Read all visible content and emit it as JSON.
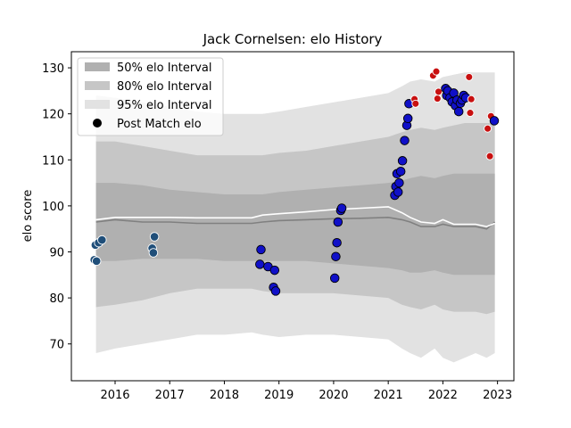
{
  "chart_data": {
    "type": "scatter",
    "title": "Jack Cornelsen: elo History",
    "xlabel": "",
    "ylabel": "elo score",
    "xlim": [
      2015.2,
      2023.3
    ],
    "ylim": [
      62,
      133.5
    ],
    "x_ticks": [
      2016,
      2017,
      2018,
      2019,
      2020,
      2021,
      2022,
      2023
    ],
    "y_ticks": [
      70,
      80,
      90,
      100,
      110,
      120,
      130
    ],
    "legend": {
      "placement": "top-left",
      "entries": [
        "50% elo Interval",
        "80% elo Interval",
        "95% elo Interval",
        "Post Match elo"
      ]
    },
    "colors": {
      "band50": "#b0b0b0",
      "band80": "#c6c6c6",
      "band95": "#e2e2e2",
      "median_line": "#808080",
      "mean_line": "#ffffff",
      "point_early": "#1f4e79",
      "point_mid": "#1010c8",
      "point_late": "#c81010"
    },
    "bands": {
      "x": [
        2015.65,
        2016.0,
        2016.5,
        2017.0,
        2017.5,
        2018.0,
        2018.5,
        2018.7,
        2019.0,
        2019.5,
        2020.0,
        2020.5,
        2021.0,
        2021.25,
        2021.4,
        2021.6,
        2021.85,
        2022.0,
        2022.2,
        2022.4,
        2022.6,
        2022.8,
        2022.95
      ],
      "p95_low": [
        68,
        69,
        70,
        71,
        72,
        72,
        72.5,
        72,
        71.5,
        72,
        72,
        71.5,
        71,
        69,
        68,
        67,
        69,
        67,
        66,
        67,
        68,
        67,
        68
      ],
      "p80_low": [
        78,
        78.5,
        79.5,
        81,
        82,
        82,
        82,
        81.5,
        81,
        81,
        81,
        80.5,
        80,
        78.5,
        78,
        77.5,
        78.5,
        77.5,
        77,
        77,
        77,
        76.5,
        77
      ],
      "p50_low": [
        88,
        88,
        88.5,
        88.5,
        88.5,
        88,
        88,
        88,
        88,
        88,
        87.5,
        87,
        86.5,
        86,
        85.5,
        85.5,
        86,
        85.5,
        85,
        85,
        85,
        85,
        85
      ],
      "p50_high": [
        105,
        105,
        104.5,
        103.5,
        103,
        102.5,
        102.5,
        102.5,
        103,
        103.5,
        104,
        104.5,
        105,
        105.5,
        106,
        106.5,
        106,
        106.5,
        107,
        107,
        107,
        107,
        107
      ],
      "p80_high": [
        114,
        114,
        113,
        112,
        111,
        111,
        111,
        111,
        111.5,
        112,
        113,
        114,
        115,
        116,
        116.5,
        117,
        116.5,
        117,
        117.5,
        118,
        118,
        118,
        118
      ],
      "p95_high": [
        124,
        123.5,
        122.5,
        121.5,
        120.5,
        120,
        120,
        120,
        120.5,
        121.5,
        122.5,
        123.5,
        124.5,
        126,
        127,
        127.5,
        127,
        128,
        128.5,
        129,
        129,
        129,
        129
      ],
      "median": [
        96.5,
        97,
        96.5,
        96.5,
        96.2,
        96.2,
        96.2,
        96.5,
        96.8,
        97,
        97.2,
        97.3,
        97.5,
        97,
        96.5,
        95.5,
        95.5,
        96,
        95.5,
        95.5,
        95.5,
        95,
        96.5
      ],
      "mean": [
        97,
        97.5,
        97.5,
        97.5,
        97.4,
        97.4,
        97.4,
        98,
        98.3,
        98.7,
        99.2,
        99.5,
        99.8,
        98.5,
        97.5,
        96.5,
        96.2,
        97,
        96,
        96,
        96,
        95.5,
        96.2
      ]
    },
    "points": [
      {
        "x": 2015.62,
        "y": 88.3,
        "group": "early"
      },
      {
        "x": 2015.64,
        "y": 91.5,
        "group": "early"
      },
      {
        "x": 2015.66,
        "y": 88.0,
        "group": "early"
      },
      {
        "x": 2015.7,
        "y": 92.0,
        "group": "early"
      },
      {
        "x": 2015.76,
        "y": 92.6,
        "group": "early"
      },
      {
        "x": 2016.68,
        "y": 90.8,
        "group": "early"
      },
      {
        "x": 2016.7,
        "y": 89.8,
        "group": "early"
      },
      {
        "x": 2016.72,
        "y": 93.3,
        "group": "early"
      },
      {
        "x": 2018.65,
        "y": 87.3,
        "group": "mid"
      },
      {
        "x": 2018.67,
        "y": 90.5,
        "group": "mid"
      },
      {
        "x": 2018.8,
        "y": 86.8,
        "group": "mid"
      },
      {
        "x": 2018.9,
        "y": 82.3,
        "group": "mid"
      },
      {
        "x": 2018.92,
        "y": 86.0,
        "group": "mid"
      },
      {
        "x": 2018.94,
        "y": 81.5,
        "group": "mid"
      },
      {
        "x": 2020.02,
        "y": 84.3,
        "group": "mid"
      },
      {
        "x": 2020.04,
        "y": 89.0,
        "group": "mid"
      },
      {
        "x": 2020.06,
        "y": 92.0,
        "group": "mid"
      },
      {
        "x": 2020.08,
        "y": 96.5,
        "group": "mid"
      },
      {
        "x": 2020.13,
        "y": 99.0,
        "group": "mid"
      },
      {
        "x": 2020.15,
        "y": 99.5,
        "group": "mid"
      },
      {
        "x": 2021.12,
        "y": 102.3,
        "group": "mid"
      },
      {
        "x": 2021.14,
        "y": 104.2,
        "group": "mid"
      },
      {
        "x": 2021.16,
        "y": 107.0,
        "group": "mid"
      },
      {
        "x": 2021.18,
        "y": 103.0,
        "group": "mid"
      },
      {
        "x": 2021.2,
        "y": 105.0,
        "group": "mid"
      },
      {
        "x": 2021.23,
        "y": 107.5,
        "group": "mid"
      },
      {
        "x": 2021.26,
        "y": 109.8,
        "group": "mid"
      },
      {
        "x": 2021.3,
        "y": 114.2,
        "group": "mid"
      },
      {
        "x": 2021.34,
        "y": 117.5,
        "group": "mid"
      },
      {
        "x": 2021.36,
        "y": 119.0,
        "group": "mid"
      },
      {
        "x": 2021.38,
        "y": 122.2,
        "group": "mid"
      },
      {
        "x": 2021.48,
        "y": 123.2,
        "group": "late"
      },
      {
        "x": 2021.5,
        "y": 122.2,
        "group": "late"
      },
      {
        "x": 2021.82,
        "y": 128.3,
        "group": "late"
      },
      {
        "x": 2021.88,
        "y": 129.2,
        "group": "late"
      },
      {
        "x": 2021.9,
        "y": 123.3,
        "group": "late"
      },
      {
        "x": 2021.92,
        "y": 124.8,
        "group": "late"
      },
      {
        "x": 2022.05,
        "y": 125.5,
        "group": "mid"
      },
      {
        "x": 2022.07,
        "y": 124.0,
        "group": "mid"
      },
      {
        "x": 2022.09,
        "y": 125.0,
        "group": "mid"
      },
      {
        "x": 2022.13,
        "y": 123.5,
        "group": "mid"
      },
      {
        "x": 2022.17,
        "y": 122.6,
        "group": "mid"
      },
      {
        "x": 2022.2,
        "y": 124.5,
        "group": "mid"
      },
      {
        "x": 2022.23,
        "y": 121.8,
        "group": "mid"
      },
      {
        "x": 2022.26,
        "y": 123.0,
        "group": "mid"
      },
      {
        "x": 2022.29,
        "y": 120.5,
        "group": "mid"
      },
      {
        "x": 2022.32,
        "y": 122.3,
        "group": "mid"
      },
      {
        "x": 2022.35,
        "y": 123.0,
        "group": "mid"
      },
      {
        "x": 2022.38,
        "y": 124.0,
        "group": "mid"
      },
      {
        "x": 2022.42,
        "y": 123.5,
        "group": "mid"
      },
      {
        "x": 2022.48,
        "y": 128.0,
        "group": "late"
      },
      {
        "x": 2022.5,
        "y": 120.2,
        "group": "late"
      },
      {
        "x": 2022.52,
        "y": 123.2,
        "group": "late"
      },
      {
        "x": 2022.82,
        "y": 116.8,
        "group": "late"
      },
      {
        "x": 2022.86,
        "y": 110.8,
        "group": "late"
      },
      {
        "x": 2022.88,
        "y": 119.5,
        "group": "late"
      },
      {
        "x": 2022.94,
        "y": 118.5,
        "group": "mid"
      }
    ]
  }
}
